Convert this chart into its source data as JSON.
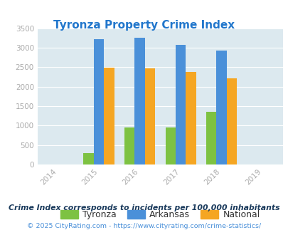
{
  "title": "Tyronza Property Crime Index",
  "title_color": "#2277cc",
  "years": [
    2015,
    2016,
    2017,
    2018
  ],
  "x_ticks": [
    2014,
    2015,
    2016,
    2017,
    2018,
    2019
  ],
  "tyronza": [
    300,
    960,
    960,
    1350
  ],
  "arkansas": [
    3220,
    3250,
    3080,
    2920
  ],
  "national": [
    2490,
    2470,
    2380,
    2210
  ],
  "bar_colors": {
    "tyronza": "#7dc242",
    "arkansas": "#4a90d9",
    "national": "#f5a623"
  },
  "ylim": [
    0,
    3500
  ],
  "yticks": [
    0,
    500,
    1000,
    1500,
    2000,
    2500,
    3000,
    3500
  ],
  "bg_color": "#dce9ef",
  "legend_labels": [
    "Tyronza",
    "Arkansas",
    "National"
  ],
  "footnote1": "Crime Index corresponds to incidents per 100,000 inhabitants",
  "footnote2": "© 2025 CityRating.com - https://www.cityrating.com/crime-statistics/",
  "footnote1_color": "#1a3a5c",
  "footnote2_color": "#4a90d9",
  "bar_width": 0.25,
  "figsize": [
    4.06,
    3.3
  ],
  "dpi": 100,
  "tick_color": "#aaaaaa",
  "xtick_color": "#aaaaaa"
}
